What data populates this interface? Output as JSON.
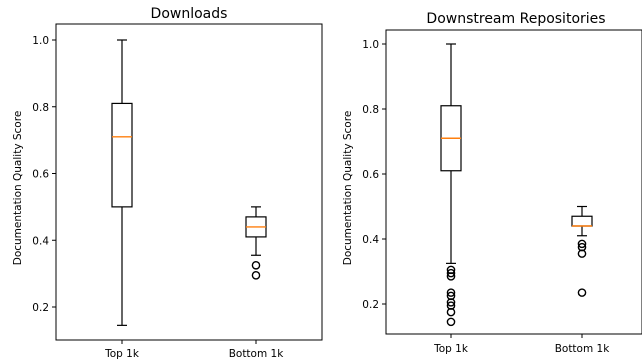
{
  "chart_data": [
    {
      "type": "boxplot",
      "title": "Downloads",
      "xlabel": "",
      "ylabel": "Documentation Quality Score",
      "ylim": [
        0.1,
        1.0
      ],
      "yticks": [
        "0.2",
        "0.4",
        "0.6",
        "0.8",
        "1.0"
      ],
      "categories": [
        "Top 1k",
        "Bottom 1k"
      ],
      "boxes": [
        {
          "category": "Top 1k",
          "whisker_low": 0.145,
          "q1": 0.5,
          "median": 0.71,
          "q3": 0.81,
          "whisker_high": 1.0,
          "outliers": []
        },
        {
          "category": "Bottom 1k",
          "whisker_low": 0.355,
          "q1": 0.41,
          "median": 0.44,
          "q3": 0.47,
          "whisker_high": 0.5,
          "outliers": [
            0.325,
            0.295
          ]
        }
      ],
      "grid": false,
      "box_color": "#000000",
      "median_color": "#ff7f0e"
    },
    {
      "type": "boxplot",
      "title": "Downstream Repositories",
      "xlabel": "",
      "ylabel": "Documentation Quality Score",
      "ylim": [
        0.1,
        1.0
      ],
      "yticks": [
        "0.2",
        "0.4",
        "0.6",
        "0.8",
        "1.0"
      ],
      "categories": [
        "Top 1k",
        "Bottom 1k"
      ],
      "boxes": [
        {
          "category": "Top 1k",
          "whisker_low": 0.325,
          "q1": 0.61,
          "median": 0.71,
          "q3": 0.81,
          "whisker_high": 1.0,
          "outliers": [
            0.305,
            0.295,
            0.285,
            0.235,
            0.225,
            0.205,
            0.195,
            0.175,
            0.145
          ]
        },
        {
          "category": "Bottom 1k",
          "whisker_low": 0.41,
          "q1": 0.44,
          "median": 0.44,
          "q3": 0.47,
          "whisker_high": 0.5,
          "outliers": [
            0.385,
            0.375,
            0.355,
            0.235
          ]
        }
      ],
      "grid": false,
      "box_color": "#000000",
      "median_color": "#ff7f0e"
    }
  ]
}
